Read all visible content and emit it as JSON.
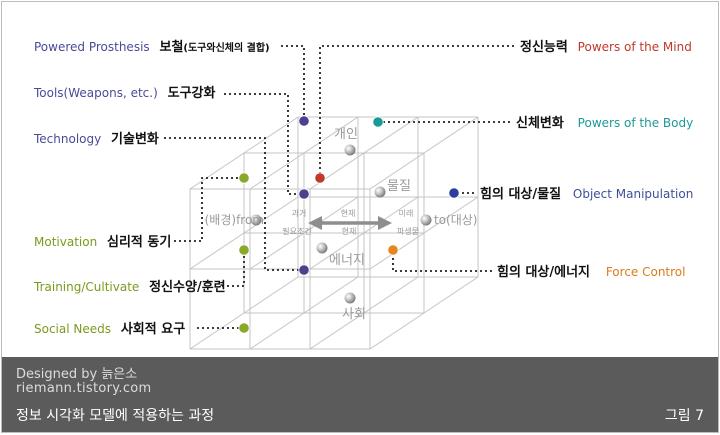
{
  "left_labels": [
    {
      "en": "Powered Prosthesis",
      "ko": "보철",
      "ko_note": "(도구와신체의 결합)",
      "en_color": "#4a4a9a",
      "dot_color": "#4e3f8f"
    },
    {
      "en": "Tools(Weapons, etc.)",
      "ko": "도구강화",
      "ko_note": "",
      "en_color": "#4a4a9a",
      "dot_color": "#4e3f8f"
    },
    {
      "en": "Technology",
      "ko": "기술변화",
      "ko_note": "",
      "en_color": "#4a4a9a",
      "dot_color": "#4e3f8f"
    },
    {
      "en": "Motivation",
      "ko": "심리적 동기",
      "ko_note": "",
      "en_color": "#7a9a1e",
      "dot_color": "#8aa82a"
    },
    {
      "en": "Training/Cultivate",
      "ko": "정신수양/훈련",
      "ko_note": "",
      "en_color": "#7a9a1e",
      "dot_color": "#8aa82a"
    },
    {
      "en": "Social Needs",
      "ko": "사회적 요구",
      "ko_note": "",
      "en_color": "#7a9a1e",
      "dot_color": "#8aa82a"
    }
  ],
  "right_labels": [
    {
      "ko": "정신능력",
      "en": "Powers of the Mind",
      "en_color": "#c0392b",
      "dot_color": "#c0392b"
    },
    {
      "ko": "신체변화",
      "en": "Powers of the Body",
      "en_color": "#1a9a96",
      "dot_color": "#1a9a96"
    },
    {
      "ko": "힘의 대상/물질",
      "en": "Object Manipulation",
      "en_color": "#3d4f9a",
      "dot_color": "#2c3f9a"
    },
    {
      "ko": "힘의 대상/에너지",
      "en": "Force Control",
      "en_color": "#e07a1a",
      "dot_color": "#e8861c"
    }
  ],
  "cube": {
    "node_labels": [
      "개인",
      "물질",
      "에너지",
      "사회"
    ],
    "from_label": "(배경)from",
    "to_label": "to(대상)",
    "time_labels": [
      "과거",
      "현재",
      "미래"
    ],
    "time_sublabels": [
      "필요조건",
      "현재",
      "파생물"
    ]
  },
  "footer": {
    "designed_by": "Designed by 늙은소",
    "site": "riemann.tistory.com",
    "caption": "정보 시각화 모델에 적용하는 과정",
    "figure_number": "그림 7"
  }
}
